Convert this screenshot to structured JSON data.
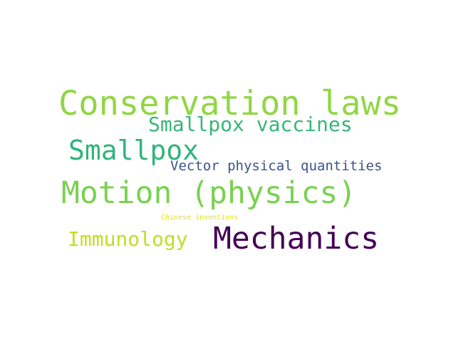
{
  "word_cloud": {
    "words": [
      {
        "text": "Conservation laws",
        "color": "#90d743"
      },
      {
        "text": "Smallpox vaccines",
        "color": "#35b779"
      },
      {
        "text": "Smallpox",
        "color": "#2fb47c"
      },
      {
        "text": "Vector physical quantities",
        "color": "#3b528b"
      },
      {
        "text": "Motion (physics)",
        "color": "#7ad151"
      },
      {
        "text": "Chinese inventions",
        "color": "#dde318"
      },
      {
        "text": "Immunology",
        "color": "#bddf26"
      },
      {
        "text": "Mechanics",
        "color": "#440154"
      }
    ]
  }
}
